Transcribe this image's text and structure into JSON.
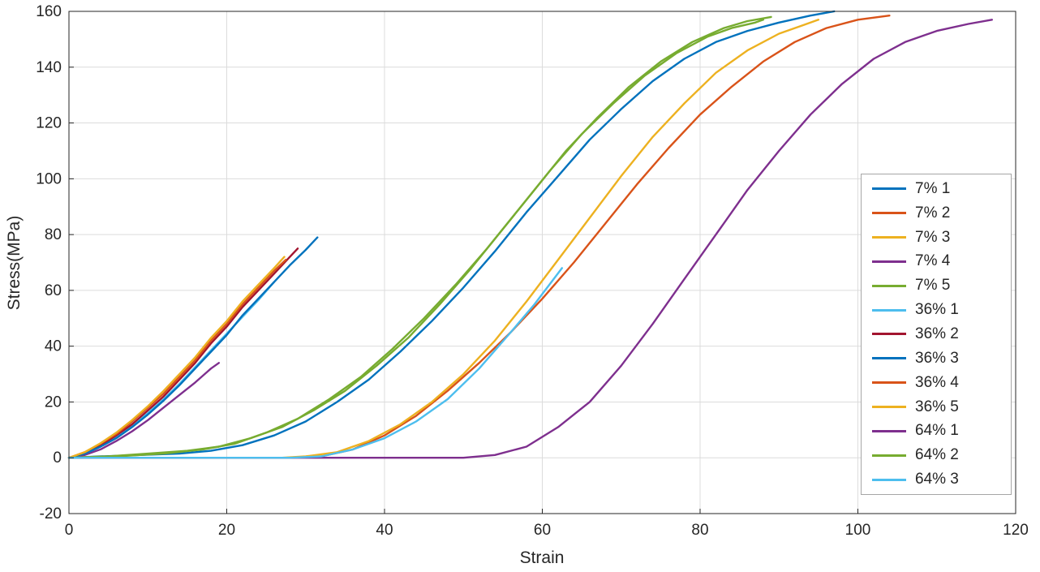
{
  "chart_data": {
    "type": "line",
    "title": "",
    "xlabel": "Strain",
    "ylabel": "Stress(MPa)",
    "xlim": [
      0,
      120
    ],
    "ylim": [
      -20,
      160
    ],
    "xticks": [
      0,
      20,
      40,
      60,
      80,
      100,
      120
    ],
    "yticks": [
      -20,
      0,
      20,
      40,
      60,
      80,
      100,
      120,
      140,
      160
    ],
    "grid": true,
    "grid_color": "#dcdcdc",
    "axis_color": "#262626",
    "legend_position": "right",
    "series": [
      {
        "name": "7% 1",
        "color": "#0072BD",
        "points": [
          [
            0,
            0
          ],
          [
            4,
            0.5
          ],
          [
            9,
            1
          ],
          [
            14,
            1.5
          ],
          [
            18,
            2.5
          ],
          [
            22,
            4.5
          ],
          [
            26,
            8
          ],
          [
            30,
            13
          ],
          [
            34,
            20
          ],
          [
            38,
            28
          ],
          [
            42,
            38
          ],
          [
            46,
            49
          ],
          [
            50,
            61
          ],
          [
            54,
            74
          ],
          [
            58,
            88
          ],
          [
            62,
            101
          ],
          [
            66,
            114
          ],
          [
            70,
            125
          ],
          [
            74,
            135
          ],
          [
            78,
            143
          ],
          [
            82,
            149
          ],
          [
            86,
            153
          ],
          [
            90,
            156
          ],
          [
            94,
            158.5
          ],
          [
            97,
            160
          ]
        ]
      },
      {
        "name": "7% 2",
        "color": "#D95319",
        "points": [
          [
            0,
            0
          ],
          [
            10,
            0
          ],
          [
            20,
            0
          ],
          [
            28,
            0
          ],
          [
            32,
            0.5
          ],
          [
            36,
            3
          ],
          [
            40,
            8
          ],
          [
            44,
            15
          ],
          [
            48,
            24
          ],
          [
            52,
            34
          ],
          [
            56,
            45
          ],
          [
            60,
            57
          ],
          [
            64,
            70
          ],
          [
            68,
            84
          ],
          [
            72,
            98
          ],
          [
            76,
            111
          ],
          [
            80,
            123
          ],
          [
            84,
            133
          ],
          [
            88,
            142
          ],
          [
            92,
            149
          ],
          [
            96,
            154
          ],
          [
            100,
            157
          ],
          [
            104,
            158.5
          ]
        ]
      },
      {
        "name": "7% 3",
        "color": "#EDB120",
        "points": [
          [
            0,
            0
          ],
          [
            10,
            0
          ],
          [
            20,
            0
          ],
          [
            27,
            0
          ],
          [
            30,
            0.5
          ],
          [
            34,
            2
          ],
          [
            38,
            6
          ],
          [
            42,
            12
          ],
          [
            46,
            20
          ],
          [
            50,
            30
          ],
          [
            54,
            42
          ],
          [
            58,
            56
          ],
          [
            62,
            71
          ],
          [
            66,
            86
          ],
          [
            70,
            101
          ],
          [
            74,
            115
          ],
          [
            78,
            127
          ],
          [
            82,
            138
          ],
          [
            86,
            146
          ],
          [
            90,
            152
          ],
          [
            93,
            155
          ],
          [
            95,
            157
          ]
        ]
      },
      {
        "name": "7% 4",
        "color": "#7E2F8E",
        "points": [
          [
            0,
            0
          ],
          [
            2,
            1
          ],
          [
            4,
            3
          ],
          [
            6,
            6
          ],
          [
            8,
            9.5
          ],
          [
            10,
            13.5
          ],
          [
            12,
            18
          ],
          [
            14,
            22.5
          ],
          [
            16,
            27
          ],
          [
            18,
            32
          ],
          [
            19,
            34
          ]
        ]
      },
      {
        "name": "7% 5",
        "color": "#77AC30",
        "points": [
          [
            0,
            0
          ],
          [
            5,
            0.5
          ],
          [
            10,
            1.5
          ],
          [
            15,
            2.5
          ],
          [
            19,
            4
          ],
          [
            23,
            7
          ],
          [
            27,
            11
          ],
          [
            31,
            17
          ],
          [
            35,
            24
          ],
          [
            39,
            33
          ],
          [
            43,
            43
          ],
          [
            47,
            55
          ],
          [
            51,
            68
          ],
          [
            55,
            82
          ],
          [
            59,
            96
          ],
          [
            63,
            110
          ],
          [
            67,
            122
          ],
          [
            71,
            133
          ],
          [
            75,
            142
          ],
          [
            79,
            149
          ],
          [
            83,
            154
          ],
          [
            86,
            156.5
          ],
          [
            89,
            158
          ]
        ]
      },
      {
        "name": "36% 1",
        "color": "#4DBEEE",
        "points": [
          [
            0,
            0
          ],
          [
            2,
            1.5
          ],
          [
            4,
            4
          ],
          [
            6,
            7.5
          ],
          [
            8,
            11.5
          ],
          [
            10,
            16
          ],
          [
            12,
            21
          ],
          [
            14,
            26.5
          ],
          [
            16,
            32.5
          ],
          [
            18,
            38.5
          ],
          [
            20,
            44.5
          ],
          [
            22,
            50.5
          ],
          [
            24,
            56.5
          ],
          [
            26,
            63
          ]
        ]
      },
      {
        "name": "36% 2",
        "color": "#A2142F",
        "points": [
          [
            0,
            0
          ],
          [
            2,
            1.5
          ],
          [
            4,
            4.5
          ],
          [
            6,
            8
          ],
          [
            8,
            12
          ],
          [
            10,
            17
          ],
          [
            12,
            22
          ],
          [
            14,
            28
          ],
          [
            16,
            34
          ],
          [
            18,
            41
          ],
          [
            20,
            47
          ],
          [
            22,
            54
          ],
          [
            24,
            60
          ],
          [
            26,
            66
          ],
          [
            28,
            72
          ],
          [
            29,
            75
          ]
        ]
      },
      {
        "name": "36% 3",
        "color": "#0072BD",
        "points": [
          [
            0,
            0
          ],
          [
            2,
            1.5
          ],
          [
            4,
            4
          ],
          [
            6,
            7
          ],
          [
            8,
            11
          ],
          [
            10,
            15.5
          ],
          [
            12,
            20.5
          ],
          [
            14,
            26
          ],
          [
            16,
            32
          ],
          [
            18,
            38
          ],
          [
            20,
            44
          ],
          [
            22,
            51
          ],
          [
            24,
            57
          ],
          [
            26,
            63
          ],
          [
            28,
            69
          ],
          [
            30,
            74.5
          ],
          [
            31.5,
            79
          ]
        ]
      },
      {
        "name": "36% 4",
        "color": "#D95319",
        "points": [
          [
            0,
            0
          ],
          [
            2,
            2
          ],
          [
            4,
            5
          ],
          [
            6,
            8.5
          ],
          [
            8,
            13
          ],
          [
            10,
            18
          ],
          [
            12,
            23
          ],
          [
            14,
            29
          ],
          [
            16,
            35
          ],
          [
            18,
            42
          ],
          [
            20,
            48
          ],
          [
            22,
            55
          ],
          [
            24,
            61
          ],
          [
            26,
            67
          ],
          [
            27.5,
            71
          ]
        ]
      },
      {
        "name": "36% 5",
        "color": "#EDB120",
        "points": [
          [
            0,
            0
          ],
          [
            2,
            2
          ],
          [
            4,
            5.2
          ],
          [
            6,
            9
          ],
          [
            8,
            13.5
          ],
          [
            10,
            18.5
          ],
          [
            12,
            24
          ],
          [
            14,
            30
          ],
          [
            16,
            36
          ],
          [
            18,
            43
          ],
          [
            20,
            49
          ],
          [
            22,
            56
          ],
          [
            24,
            62
          ],
          [
            26,
            68
          ],
          [
            27.3,
            72
          ]
        ]
      },
      {
        "name": "64% 1",
        "color": "#7E2F8E",
        "points": [
          [
            0,
            0
          ],
          [
            15,
            0
          ],
          [
            30,
            0
          ],
          [
            42,
            0
          ],
          [
            50,
            0
          ],
          [
            54,
            1
          ],
          [
            58,
            4
          ],
          [
            62,
            11
          ],
          [
            66,
            20
          ],
          [
            70,
            33
          ],
          [
            74,
            48
          ],
          [
            78,
            64
          ],
          [
            82,
            80
          ],
          [
            86,
            96
          ],
          [
            90,
            110
          ],
          [
            94,
            123
          ],
          [
            98,
            134
          ],
          [
            102,
            143
          ],
          [
            106,
            149
          ],
          [
            110,
            153
          ],
          [
            114,
            155.5
          ],
          [
            117,
            157
          ]
        ]
      },
      {
        "name": "64% 2",
        "color": "#77AC30",
        "points": [
          [
            0,
            0
          ],
          [
            6,
            0.5
          ],
          [
            12,
            1.5
          ],
          [
            17,
            3
          ],
          [
            21,
            5
          ],
          [
            25,
            9
          ],
          [
            29,
            14
          ],
          [
            33,
            21
          ],
          [
            37,
            29
          ],
          [
            41,
            39
          ],
          [
            45,
            50
          ],
          [
            49,
            62
          ],
          [
            53,
            75
          ],
          [
            57,
            89
          ],
          [
            61,
            103
          ],
          [
            65,
            116
          ],
          [
            69,
            127
          ],
          [
            73,
            137
          ],
          [
            77,
            145
          ],
          [
            81,
            151
          ],
          [
            84,
            154
          ],
          [
            87,
            156
          ],
          [
            88,
            157
          ]
        ]
      },
      {
        "name": "64% 3",
        "color": "#4DBEEE",
        "points": [
          [
            0,
            0
          ],
          [
            10,
            0
          ],
          [
            20,
            0
          ],
          [
            28,
            0
          ],
          [
            32,
            0.5
          ],
          [
            36,
            3
          ],
          [
            40,
            7
          ],
          [
            44,
            13
          ],
          [
            48,
            21
          ],
          [
            52,
            32
          ],
          [
            56,
            45
          ],
          [
            59,
            55
          ],
          [
            62.5,
            68
          ]
        ]
      }
    ]
  }
}
